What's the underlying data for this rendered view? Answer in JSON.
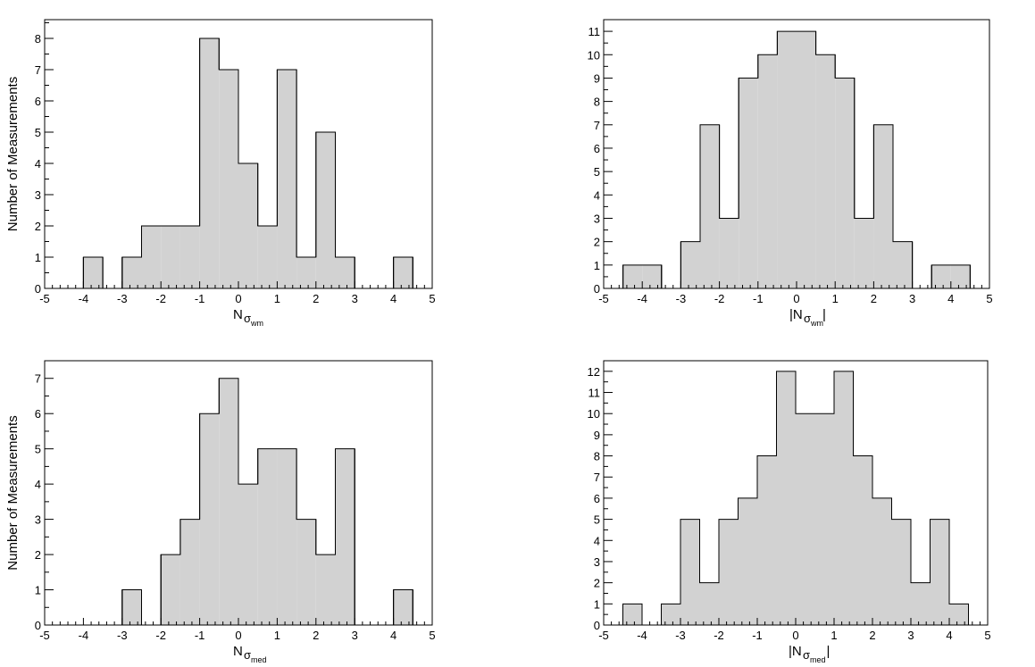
{
  "chart_data": [
    {
      "type": "bar",
      "subtype": "histogram",
      "bin_edges": [
        -5,
        -4.5,
        -4,
        -3.5,
        -3,
        -2.5,
        -2,
        -1.5,
        -1,
        -0.5,
        0,
        0.5,
        1,
        1.5,
        2,
        2.5,
        3,
        3.5,
        4,
        4.5,
        5
      ],
      "values": [
        0,
        0,
        1,
        0,
        1,
        2,
        2,
        2,
        8,
        7,
        4,
        2,
        7,
        1,
        5,
        1,
        0,
        0,
        1,
        0
      ],
      "xlim": [
        -5,
        5
      ],
      "ylim": [
        0,
        8.6
      ],
      "x_ticks": [
        -5,
        -4,
        -3,
        -2,
        -1,
        0,
        1,
        2,
        3,
        4,
        5
      ],
      "y_ticks": [
        0,
        1,
        2,
        3,
        4,
        5,
        6,
        7,
        8
      ],
      "ylabel": "Number of Measurements",
      "xlabel_main": "N",
      "xlabel_sub": "σ",
      "xlabel_subsub": "wm",
      "abs_bars": false
    },
    {
      "type": "bar",
      "subtype": "histogram",
      "bin_edges": [
        -5,
        -4.5,
        -4,
        -3.5,
        -3,
        -2.5,
        -2,
        -1.5,
        -1,
        -0.5,
        0,
        0.5,
        1,
        1.5,
        2,
        2.5,
        3,
        3.5,
        4,
        4.5,
        5
      ],
      "values": [
        0,
        1,
        1,
        0,
        2,
        7,
        3,
        9,
        10,
        11,
        11,
        10,
        9,
        3,
        7,
        2,
        0,
        1,
        1,
        0
      ],
      "xlim": [
        -5,
        5
      ],
      "ylim": [
        0,
        11.5
      ],
      "x_ticks": [
        -5,
        -4,
        -3,
        -2,
        -1,
        0,
        1,
        2,
        3,
        4,
        5
      ],
      "y_ticks": [
        0,
        1,
        2,
        3,
        4,
        5,
        6,
        7,
        8,
        9,
        10,
        11
      ],
      "ylabel": "",
      "xlabel_main": "N",
      "xlabel_sub": "σ",
      "xlabel_subsub": "wm",
      "abs_bars": true
    },
    {
      "type": "bar",
      "subtype": "histogram",
      "bin_edges": [
        -5,
        -4.5,
        -4,
        -3.5,
        -3,
        -2.5,
        -2,
        -1.5,
        -1,
        -0.5,
        0,
        0.5,
        1,
        1.5,
        2,
        2.5,
        3,
        3.5,
        4,
        4.5,
        5
      ],
      "values": [
        0,
        0,
        0,
        0,
        1,
        0,
        2,
        3,
        6,
        7,
        4,
        5,
        5,
        3,
        2,
        5,
        0,
        0,
        1,
        0
      ],
      "xlim": [
        -5,
        5
      ],
      "ylim": [
        0,
        7.5
      ],
      "x_ticks": [
        -5,
        -4,
        -3,
        -2,
        -1,
        0,
        1,
        2,
        3,
        4,
        5
      ],
      "y_ticks": [
        0,
        1,
        2,
        3,
        4,
        5,
        6,
        7
      ],
      "ylabel": "Number of Measurements",
      "xlabel_main": "N",
      "xlabel_sub": "σ",
      "xlabel_subsub": "med",
      "abs_bars": false
    },
    {
      "type": "bar",
      "subtype": "histogram",
      "bin_edges": [
        -5,
        -4.5,
        -4,
        -3.5,
        -3,
        -2.5,
        -2,
        -1.5,
        -1,
        -0.5,
        0,
        0.5,
        1,
        1.5,
        2,
        2.5,
        3,
        3.5,
        4,
        4.5,
        5
      ],
      "values": [
        0,
        1,
        0,
        1,
        5,
        2,
        5,
        6,
        8,
        12,
        10,
        10,
        12,
        8,
        6,
        5,
        2,
        5,
        1,
        0
      ],
      "xlim": [
        -5,
        5
      ],
      "ylim": [
        0,
        12.5
      ],
      "x_ticks": [
        -5,
        -4,
        -3,
        -2,
        -1,
        0,
        1,
        2,
        3,
        4,
        5
      ],
      "y_ticks": [
        0,
        1,
        2,
        3,
        4,
        5,
        6,
        7,
        8,
        9,
        10,
        11,
        12
      ],
      "ylabel": "",
      "xlabel_main": "N",
      "xlabel_sub": "σ",
      "xlabel_subsub": "med",
      "abs_bars": true
    }
  ],
  "colors": {
    "fill": "#d2d2d2",
    "stroke": "#000000"
  }
}
